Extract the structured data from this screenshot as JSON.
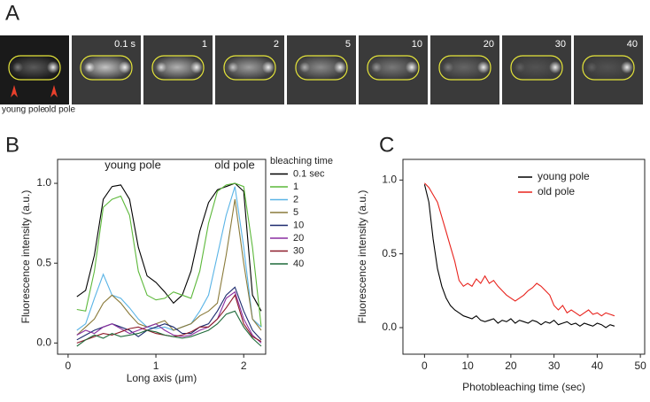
{
  "panel_a": {
    "label": "A",
    "frames": [
      "0.1 s",
      "1",
      "2",
      "5",
      "10",
      "20",
      "30",
      "40"
    ],
    "annotations": [
      "young pole",
      "old pole"
    ]
  },
  "chart_data": [
    {
      "type": "line",
      "panel_label": "B",
      "xlabel": "Long axis (μm)",
      "ylabel": "Fluorescence intensity (a.u.)",
      "annotations": [
        "young pole",
        "old pole"
      ],
      "legend_title": "bleaching time",
      "x": [
        0.1,
        0.2,
        0.3,
        0.4,
        0.5,
        0.6,
        0.7,
        0.8,
        0.9,
        1.0,
        1.1,
        1.2,
        1.3,
        1.4,
        1.5,
        1.6,
        1.7,
        1.8,
        1.9,
        2.0,
        2.1,
        2.2
      ],
      "xlim": [
        -0.12,
        2.25
      ],
      "ylim": [
        -0.07,
        1.15
      ],
      "xticks": [
        0,
        1,
        2
      ],
      "yticks": [
        {
          "value": 0,
          "label": "0.0"
        },
        {
          "value": 0.5,
          "label": "0.5"
        },
        {
          "value": 1,
          "label": "1.0"
        }
      ],
      "series": [
        {
          "name": "0.1 sec",
          "color": "#000000",
          "values": [
            0.29,
            0.33,
            0.55,
            0.9,
            0.98,
            0.99,
            0.9,
            0.6,
            0.42,
            0.38,
            0.32,
            0.25,
            0.3,
            0.45,
            0.7,
            0.88,
            0.96,
            0.98,
            1.0,
            0.95,
            0.3,
            0.2
          ]
        },
        {
          "name": "1",
          "color": "#5cb83a",
          "values": [
            0.21,
            0.2,
            0.45,
            0.85,
            0.9,
            0.92,
            0.8,
            0.45,
            0.3,
            0.27,
            0.28,
            0.32,
            0.3,
            0.28,
            0.45,
            0.75,
            0.95,
            0.99,
            1.0,
            0.98,
            0.6,
            0.1
          ]
        },
        {
          "name": "2",
          "color": "#5ab4e6",
          "values": [
            0.08,
            0.12,
            0.28,
            0.43,
            0.3,
            0.28,
            0.22,
            0.15,
            0.1,
            0.09,
            0.1,
            0.08,
            0.1,
            0.12,
            0.2,
            0.3,
            0.55,
            0.8,
            0.98,
            0.6,
            0.15,
            0.1
          ]
        },
        {
          "name": "5",
          "color": "#8a7a3a",
          "values": [
            0.05,
            0.1,
            0.15,
            0.25,
            0.3,
            0.25,
            0.18,
            0.12,
            0.1,
            0.12,
            0.14,
            0.08,
            0.1,
            0.12,
            0.17,
            0.2,
            0.25,
            0.55,
            0.9,
            0.5,
            0.15,
            0.08
          ]
        },
        {
          "name": "10",
          "color": "#1c2a6e",
          "values": [
            0.02,
            0.05,
            0.08,
            0.1,
            0.12,
            0.1,
            0.08,
            0.04,
            0.08,
            0.1,
            0.12,
            0.1,
            0.06,
            0.06,
            0.1,
            0.12,
            0.2,
            0.3,
            0.35,
            0.2,
            0.08,
            0.02
          ]
        },
        {
          "name": "20",
          "color": "#8a2fa0",
          "values": [
            0.05,
            0.08,
            0.06,
            0.1,
            0.12,
            0.09,
            0.06,
            0.08,
            0.1,
            0.12,
            0.08,
            0.05,
            0.04,
            0.05,
            0.08,
            0.1,
            0.15,
            0.28,
            0.32,
            0.15,
            0.05,
            0.0
          ]
        },
        {
          "name": "30",
          "color": "#8e1c2a",
          "values": [
            0.0,
            0.02,
            0.04,
            0.06,
            0.05,
            0.07,
            0.09,
            0.1,
            0.08,
            0.06,
            0.05,
            0.04,
            0.05,
            0.07,
            0.1,
            0.1,
            0.15,
            0.22,
            0.3,
            0.12,
            0.04,
            0.01
          ]
        },
        {
          "name": "40",
          "color": "#1f6a3a",
          "values": [
            -0.02,
            0.02,
            0.05,
            0.03,
            0.06,
            0.04,
            0.05,
            0.06,
            0.08,
            0.07,
            0.05,
            0.04,
            0.03,
            0.04,
            0.06,
            0.08,
            0.12,
            0.18,
            0.2,
            0.1,
            0.03,
            -0.02
          ]
        }
      ]
    },
    {
      "type": "line",
      "panel_label": "C",
      "xlabel": "Photobleaching time (sec)",
      "ylabel": "Fluorescence intensity (a.u.)",
      "x": [
        0,
        1,
        2,
        3,
        4,
        5,
        6,
        7,
        8,
        9,
        10,
        11,
        12,
        13,
        14,
        15,
        16,
        17,
        18,
        19,
        20,
        21,
        22,
        23,
        24,
        25,
        26,
        27,
        28,
        29,
        30,
        31,
        32,
        33,
        34,
        35,
        36,
        37,
        38,
        39,
        40,
        41,
        42,
        43,
        44
      ],
      "xlim": [
        -5,
        51
      ],
      "ylim": [
        -0.18,
        1.14
      ],
      "xticks": [
        0,
        10,
        20,
        30,
        40,
        50
      ],
      "yticks": [
        {
          "value": 0,
          "label": "0.0"
        },
        {
          "value": 0.5,
          "label": "0.5"
        },
        {
          "value": 1,
          "label": "1.0"
        }
      ],
      "series": [
        {
          "name": "young pole",
          "color": "#000000",
          "values": [
            0.97,
            0.85,
            0.6,
            0.4,
            0.28,
            0.2,
            0.15,
            0.12,
            0.1,
            0.08,
            0.07,
            0.06,
            0.08,
            0.05,
            0.04,
            0.05,
            0.06,
            0.03,
            0.05,
            0.04,
            0.06,
            0.03,
            0.05,
            0.04,
            0.03,
            0.05,
            0.04,
            0.02,
            0.04,
            0.03,
            0.05,
            0.02,
            0.03,
            0.04,
            0.02,
            0.03,
            0.01,
            0.03,
            0.02,
            0.01,
            0.03,
            0.02,
            0.0,
            0.02,
            0.01
          ]
        },
        {
          "name": "old pole",
          "color": "#e8221c",
          "values": [
            0.98,
            0.95,
            0.9,
            0.85,
            0.75,
            0.65,
            0.55,
            0.45,
            0.32,
            0.28,
            0.3,
            0.28,
            0.33,
            0.3,
            0.35,
            0.3,
            0.32,
            0.28,
            0.25,
            0.22,
            0.2,
            0.18,
            0.2,
            0.22,
            0.25,
            0.27,
            0.3,
            0.28,
            0.25,
            0.22,
            0.15,
            0.12,
            0.15,
            0.1,
            0.12,
            0.1,
            0.08,
            0.1,
            0.12,
            0.09,
            0.1,
            0.08,
            0.1,
            0.09,
            0.08
          ]
        }
      ]
    }
  ]
}
